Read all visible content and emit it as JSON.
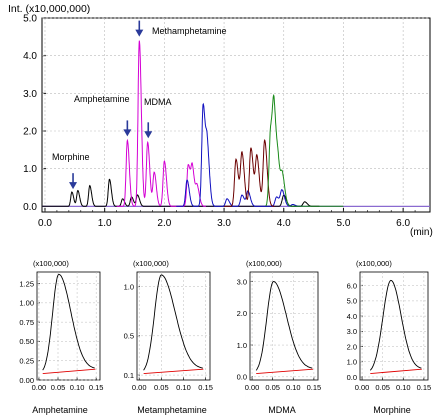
{
  "main": {
    "ylabel": "Int. (x10,000,000)",
    "xunit": "(min)",
    "x_ticks": [
      "0.0",
      "1.0",
      "2.0",
      "3.0",
      "4.0",
      "5.0",
      "6.0"
    ],
    "y_ticks": [
      "0.0",
      "1.0",
      "2.0",
      "3.0",
      "4.0",
      "5.0"
    ],
    "annotations": [
      {
        "label": "Morphine",
        "x": 0.47,
        "peak": 0.35
      },
      {
        "label": "Amphetamine",
        "x": 1.38,
        "peak": 1.75
      },
      {
        "label": "MDMA",
        "x": 1.73,
        "peak": 1.7
      },
      {
        "label": "Methamphetamine",
        "x": 1.58,
        "peak": 4.4
      }
    ],
    "colors": {
      "black": "#000000",
      "magenta": "#d400d4",
      "blue": "#1010c0",
      "brown": "#6b0000",
      "green": "#1a8a1a",
      "purple": "#8a6ad0",
      "arrow": "#2a3a9a"
    }
  },
  "chart_data": [
    {
      "type": "line",
      "title": "",
      "xlabel": "(min)",
      "ylabel": "Int. (x10,000,000)",
      "xlim": [
        -0.05,
        6.45
      ],
      "ylim": [
        -0.15,
        5.0
      ],
      "series": [
        {
          "color": "#000000",
          "peaks": [
            [
              0.45,
              0.38
            ],
            [
              0.55,
              0.42
            ],
            [
              0.75,
              0.55
            ],
            [
              1.08,
              0.72
            ],
            [
              1.3,
              0.2
            ],
            [
              1.45,
              0.25
            ],
            [
              1.55,
              0.3
            ],
            [
              4.0,
              0.3
            ],
            [
              4.35,
              0.12
            ]
          ]
        },
        {
          "color": "#d400d4",
          "peaks": [
            [
              1.38,
              1.75
            ],
            [
              1.58,
              4.4
            ],
            [
              1.72,
              1.7
            ],
            [
              1.83,
              0.9
            ],
            [
              2.0,
              1.2
            ],
            [
              2.4,
              1.1
            ],
            [
              2.47,
              0.95
            ],
            [
              2.55,
              0.5
            ]
          ]
        },
        {
          "color": "#1010c0",
          "peaks": [
            [
              2.38,
              0.7
            ],
            [
              2.65,
              2.7
            ],
            [
              2.72,
              1.4
            ],
            [
              3.05,
              0.2
            ],
            [
              3.3,
              0.3
            ],
            [
              3.4,
              0.4
            ],
            [
              3.88,
              0.25
            ],
            [
              3.97,
              0.42
            ],
            [
              4.15,
              0.05
            ]
          ]
        },
        {
          "color": "#6b0000",
          "peaks": [
            [
              3.2,
              1.25
            ],
            [
              3.3,
              1.4
            ],
            [
              3.45,
              1.55
            ],
            [
              3.55,
              1.3
            ],
            [
              3.68,
              1.75
            ]
          ]
        },
        {
          "color": "#1a8a1a",
          "peaks": [
            [
              3.78,
              2.0
            ],
            [
              3.84,
              2.15
            ],
            [
              3.91,
              0.85
            ],
            [
              3.98,
              0.7
            ]
          ]
        }
      ]
    },
    {
      "type": "line",
      "title": "",
      "xlabel": "Amphetamine",
      "ylabel": "(x100,000)",
      "xlim": [
        -0.005,
        0.16
      ],
      "ylim": [
        0,
        1.4
      ],
      "y_ticks": [
        "0.00",
        "0.25",
        "0.50",
        "0.75",
        "1.00",
        "1.25"
      ],
      "x_ticks": [
        "0.00",
        "0.05",
        "0.10",
        "0.15"
      ],
      "peak": {
        "apex_x": 0.052,
        "apex_y": 1.37,
        "base_start": 0.01,
        "base_end": 0.148
      }
    },
    {
      "type": "line",
      "title": "",
      "xlabel": "Metamphetamine",
      "ylabel": "(x100,000)",
      "xlim": [
        -0.005,
        0.16
      ],
      "ylim": [
        0.05,
        1.15
      ],
      "y_ticks": [
        "0.1",
        "0.5",
        "1.0"
      ],
      "x_ticks": [
        "0.00",
        "0.05",
        "0.10",
        "0.15"
      ],
      "peak": {
        "apex_x": 0.05,
        "apex_y": 1.12,
        "base_start": 0.01,
        "base_end": 0.145
      }
    },
    {
      "type": "line",
      "title": "",
      "xlabel": "MDMA",
      "ylabel": "(x100,000)",
      "xlim": [
        -0.005,
        0.16
      ],
      "ylim": [
        -0.1,
        3.3
      ],
      "y_ticks": [
        "0.0",
        "1.0",
        "2.0",
        "3.0"
      ],
      "x_ticks": [
        "0.00",
        "0.05",
        "0.10",
        "0.15"
      ],
      "peak": {
        "apex_x": 0.052,
        "apex_y": 3.0,
        "base_start": 0.01,
        "base_end": 0.148
      }
    },
    {
      "type": "line",
      "title": "",
      "xlabel": "Morphine",
      "ylabel": "(x100,000)",
      "xlim": [
        -0.005,
        0.16
      ],
      "ylim": [
        -0.2,
        6.9
      ],
      "y_ticks": [
        "0.0",
        "1.0",
        "2.0",
        "3.0",
        "4.0",
        "5.0",
        "6.0"
      ],
      "x_ticks": [
        "0.00",
        "0.05",
        "0.10",
        "0.15"
      ],
      "peak": {
        "apex_x": 0.07,
        "apex_y": 6.35,
        "base_start": 0.02,
        "base_end": 0.145
      }
    }
  ]
}
